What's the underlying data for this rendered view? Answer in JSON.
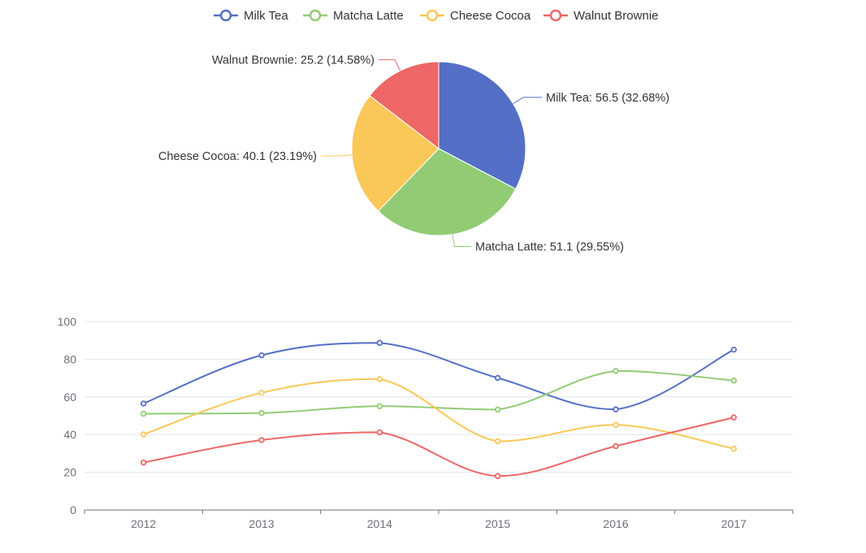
{
  "colors": {
    "Milk Tea": "#5470c6",
    "Matcha Latte": "#91cc75",
    "Cheese Cocoa": "#fac858",
    "Walnut Brownie": "#ee6666",
    "axis": "#6e7079",
    "grid": "#e0e6f1",
    "label": "#333333"
  },
  "legend": {
    "position": "top-center",
    "items": [
      "Milk Tea",
      "Matcha Latte",
      "Cheese Cocoa",
      "Walnut Brownie"
    ]
  },
  "chart_data": [
    {
      "type": "pie",
      "slices": [
        {
          "name": "Milk Tea",
          "value": 56.5,
          "label": "Milk Tea: 56.5 (32.68%)"
        },
        {
          "name": "Matcha Latte",
          "value": 51.1,
          "label": "Matcha Latte: 51.1 (29.55%)"
        },
        {
          "name": "Cheese Cocoa",
          "value": 40.1,
          "label": "Cheese Cocoa: 40.1 (23.19%)"
        },
        {
          "name": "Walnut Brownie",
          "value": 25.2,
          "label": "Walnut Brownie: 25.2 (14.58%)"
        }
      ]
    },
    {
      "type": "line",
      "smooth": true,
      "categories": [
        "2012",
        "2013",
        "2014",
        "2015",
        "2016",
        "2017"
      ],
      "ylim": [
        0,
        100
      ],
      "yticks": [
        "0",
        "20",
        "40",
        "60",
        "80",
        "100"
      ],
      "grid": true,
      "series": [
        {
          "name": "Milk Tea",
          "values": [
            56.5,
            82.1,
            88.7,
            70.1,
            53.4,
            85.1
          ]
        },
        {
          "name": "Matcha Latte",
          "values": [
            51.1,
            51.4,
            55.1,
            53.3,
            73.8,
            68.7
          ]
        },
        {
          "name": "Cheese Cocoa",
          "values": [
            40.1,
            62.2,
            69.5,
            36.4,
            45.2,
            32.5
          ]
        },
        {
          "name": "Walnut Brownie",
          "values": [
            25.2,
            37.1,
            41.2,
            18.0,
            33.9,
            49.1
          ]
        }
      ]
    }
  ]
}
